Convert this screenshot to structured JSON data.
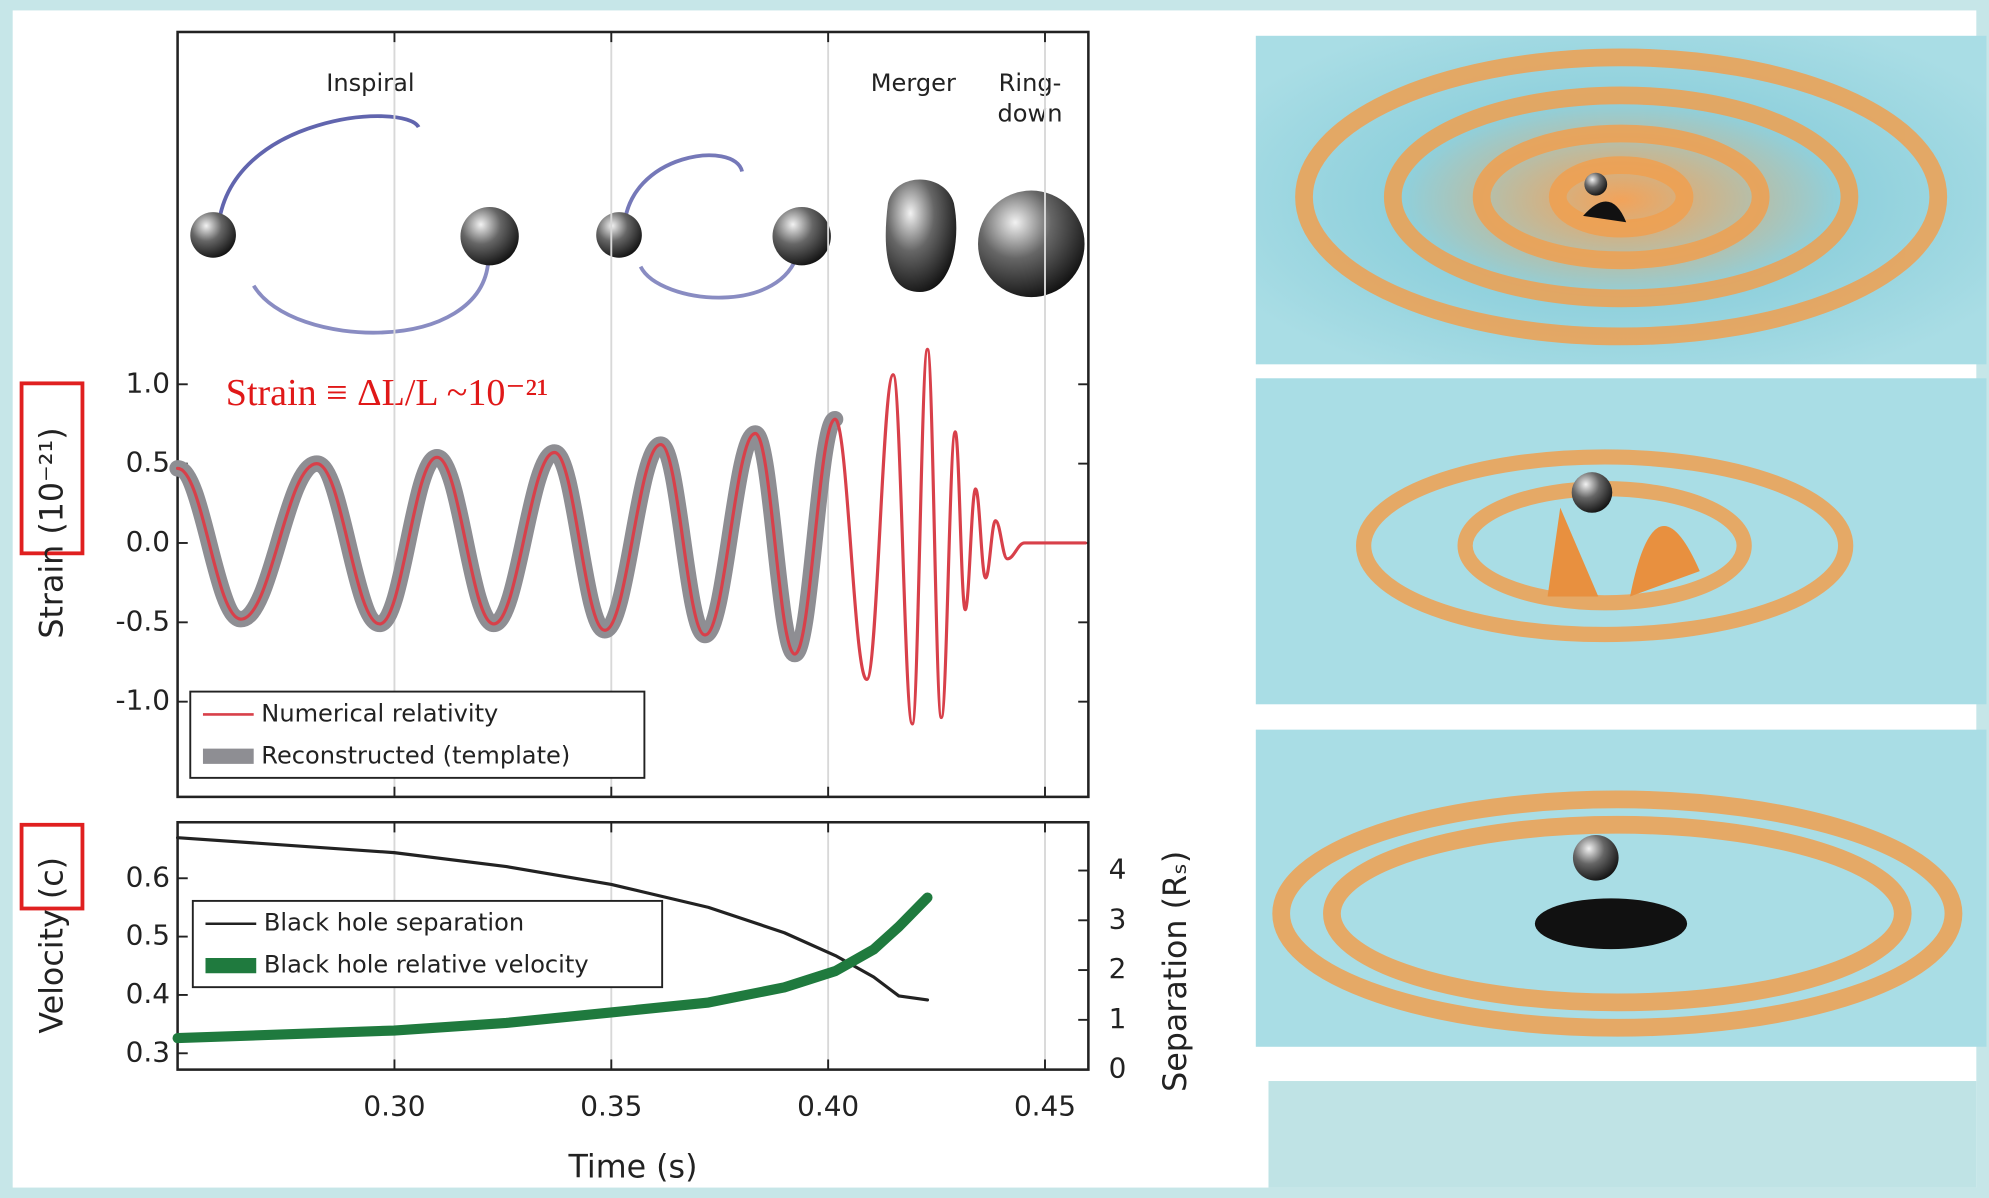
{
  "chart_data": [
    {
      "type": "line",
      "smooth": true,
      "ylabel": "Strain (10⁻²¹)",
      "phase_labels": [
        "Inspiral",
        "Merger",
        "Ring-",
        "down"
      ],
      "annotation": "Strain ≡ ΔL/L ~10⁻²¹",
      "x": [
        0.25,
        0.2646,
        0.2821,
        0.2966,
        0.3098,
        0.3229,
        0.3369,
        0.3485,
        0.3614,
        0.3716,
        0.3832,
        0.3923,
        0.4016,
        0.4089,
        0.415,
        0.4194,
        0.4229,
        0.4261,
        0.4293,
        0.4316,
        0.434,
        0.4363,
        0.4386,
        0.4413,
        0.4453,
        0.4593
      ],
      "series": [
        {
          "name": "Reconstructed (template)",
          "color": "#8e8e93",
          "values": [
            0.47,
            -0.48,
            0.5,
            -0.51,
            0.54,
            -0.51,
            0.57,
            -0.55,
            0.62,
            -0.58,
            0.69,
            -0.7,
            0.78,
            null,
            null,
            null,
            null,
            null,
            null,
            null,
            null,
            null,
            null,
            null,
            null,
            null
          ]
        },
        {
          "name": "Numerical relativity",
          "color": "#d8404a",
          "values": [
            0.47,
            -0.48,
            0.5,
            -0.51,
            0.54,
            -0.51,
            0.57,
            -0.55,
            0.62,
            -0.58,
            0.69,
            -0.7,
            0.78,
            -0.86,
            1.06,
            -1.14,
            1.22,
            -1.1,
            0.7,
            -0.42,
            0.34,
            -0.22,
            0.14,
            -0.1,
            0,
            0
          ]
        }
      ],
      "xlim": [
        0.25,
        0.46
      ],
      "ylim": [
        -1.6,
        3.22
      ],
      "yticks": [
        {
          "value": -1,
          "label": "-1.0"
        },
        -0.5,
        {
          "value": 0,
          "label": "0.0"
        },
        0.5,
        {
          "value": 1,
          "label": "1.0"
        }
      ],
      "grid": "x",
      "legend": "lower left"
    },
    {
      "type": "line",
      "smooth": false,
      "xlabel": "Time (s)",
      "ylabel": "Velocity (c)",
      "y2label": "Separation (Rₛ)",
      "x": [
        0.25,
        0.2999,
        0.3258,
        0.35,
        0.3724,
        0.3899,
        0.4017,
        0.4105,
        0.4163,
        0.4229
      ],
      "series": [
        {
          "name": "Black hole separation",
          "color": "#222222",
          "axis": "y2",
          "values": [
            4.66,
            4.36,
            4.08,
            3.72,
            3.26,
            2.75,
            2.29,
            1.86,
            1.48,
            1.4
          ]
        },
        {
          "name": "Black hole relative velocity",
          "color": "#1f7a3e",
          "values": [
            0.326,
            0.339,
            0.352,
            0.37,
            0.387,
            0.413,
            0.441,
            0.478,
            0.517,
            0.567
          ]
        }
      ],
      "xlim": [
        0.25,
        0.46
      ],
      "ylim": [
        0.272,
        0.696
      ],
      "y2lim": [
        0,
        4.97
      ],
      "xticks": [
        {
          "value": 0.3,
          "label": "0.30"
        },
        {
          "value": 0.35,
          "label": "0.35"
        },
        {
          "value": 0.4,
          "label": "0.40"
        },
        {
          "value": 0.45,
          "label": "0.45"
        }
      ],
      "yticks": [
        0.3,
        0.4,
        0.5,
        0.6
      ],
      "y2ticks": [
        0,
        1,
        2,
        3,
        4
      ],
      "grid": "x",
      "legend": "upper left"
    }
  ]
}
